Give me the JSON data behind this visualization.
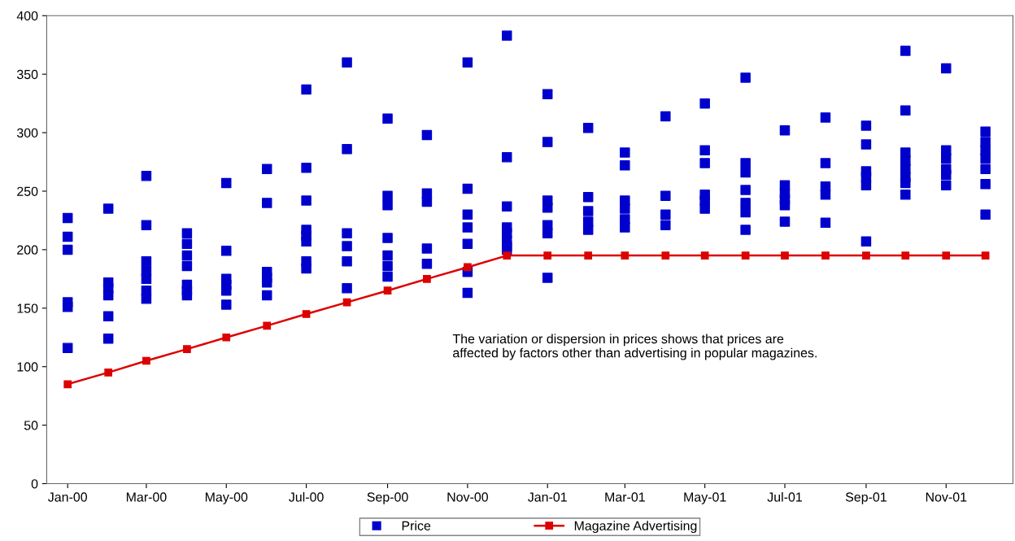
{
  "chart_data": {
    "type": "line",
    "x": [
      "2000-01",
      "2000-02",
      "2000-03",
      "2000-04",
      "2000-05",
      "2000-06",
      "2000-07",
      "2000-08",
      "2000-09",
      "2000-10",
      "2000-11",
      "2000-12",
      "2001-01",
      "2001-02",
      "2001-03",
      "2001-04",
      "2001-05",
      "2001-06",
      "2001-07",
      "2001-08",
      "2001-09",
      "2001-10",
      "2001-11",
      "2001-12"
    ],
    "series": [
      {
        "name": "Price",
        "type": "scatter",
        "color": "#0000cc",
        "marker": "square",
        "x": [
          "2000-01",
          "2000-01",
          "2000-01",
          "2000-01",
          "2000-01",
          "2000-01",
          "2000-02",
          "2000-02",
          "2000-02",
          "2000-02",
          "2000-02",
          "2000-02",
          "2000-03",
          "2000-03",
          "2000-03",
          "2000-03",
          "2000-03",
          "2000-03",
          "2000-03",
          "2000-04",
          "2000-04",
          "2000-04",
          "2000-04",
          "2000-04",
          "2000-04",
          "2000-04",
          "2000-05",
          "2000-05",
          "2000-05",
          "2000-05",
          "2000-05",
          "2000-05",
          "2000-06",
          "2000-06",
          "2000-06",
          "2000-06",
          "2000-06",
          "2000-06",
          "2000-07",
          "2000-07",
          "2000-07",
          "2000-07",
          "2000-07",
          "2000-07",
          "2000-07",
          "2000-07",
          "2000-08",
          "2000-08",
          "2000-08",
          "2000-08",
          "2000-08",
          "2000-08",
          "2000-09",
          "2000-09",
          "2000-09",
          "2000-09",
          "2000-09",
          "2000-09",
          "2000-09",
          "2000-10",
          "2000-10",
          "2000-10",
          "2000-10",
          "2000-10",
          "2000-11",
          "2000-11",
          "2000-11",
          "2000-11",
          "2000-11",
          "2000-11",
          "2000-11",
          "2000-12",
          "2000-12",
          "2000-12",
          "2000-12",
          "2000-12",
          "2000-12",
          "2000-12",
          "2000-12",
          "2001-01",
          "2001-01",
          "2001-01",
          "2001-01",
          "2001-01",
          "2001-01",
          "2001-01",
          "2001-02",
          "2001-02",
          "2001-02",
          "2001-02",
          "2001-02",
          "2001-03",
          "2001-03",
          "2001-03",
          "2001-03",
          "2001-03",
          "2001-03",
          "2001-04",
          "2001-04",
          "2001-04",
          "2001-04",
          "2001-05",
          "2001-05",
          "2001-05",
          "2001-05",
          "2001-05",
          "2001-05",
          "2001-06",
          "2001-06",
          "2001-06",
          "2001-06",
          "2001-06",
          "2001-06",
          "2001-06",
          "2001-07",
          "2001-07",
          "2001-07",
          "2001-07",
          "2001-07",
          "2001-07",
          "2001-08",
          "2001-08",
          "2001-08",
          "2001-08",
          "2001-08",
          "2001-09",
          "2001-09",
          "2001-09",
          "2001-09",
          "2001-09",
          "2001-09",
          "2001-10",
          "2001-10",
          "2001-10",
          "2001-10",
          "2001-10",
          "2001-10",
          "2001-10",
          "2001-10",
          "2001-11",
          "2001-11",
          "2001-11",
          "2001-11",
          "2001-11",
          "2001-11",
          "2001-12",
          "2001-12",
          "2001-12",
          "2001-12",
          "2001-12",
          "2001-12",
          "2001-12"
        ],
        "values": [
          227,
          211,
          200,
          155,
          151,
          116,
          235,
          172,
          167,
          161,
          143,
          124,
          263,
          221,
          190,
          182,
          175,
          165,
          158,
          214,
          205,
          195,
          186,
          170,
          165,
          161,
          257,
          199,
          175,
          170,
          165,
          153,
          269,
          240,
          181,
          176,
          172,
          161,
          337,
          270,
          242,
          217,
          212,
          207,
          190,
          184,
          360,
          286,
          214,
          203,
          190,
          167,
          312,
          246,
          238,
          210,
          195,
          186,
          177,
          298,
          248,
          241,
          201,
          188,
          360,
          252,
          230,
          219,
          205,
          181,
          163,
          383,
          279,
          237,
          219,
          214,
          208,
          203,
          200,
          333,
          292,
          242,
          236,
          221,
          214,
          176,
          304,
          245,
          233,
          224,
          217,
          283,
          272,
          242,
          235,
          226,
          219,
          314,
          246,
          230,
          221,
          325,
          285,
          274,
          247,
          242,
          235,
          347,
          274,
          266,
          251,
          240,
          232,
          217,
          302,
          255,
          248,
          243,
          238,
          224,
          313,
          274,
          254,
          247,
          223,
          306,
          290,
          267,
          262,
          255,
          207,
          370,
          319,
          283,
          276,
          269,
          262,
          257,
          247,
          355,
          285,
          278,
          269,
          264,
          255,
          301,
          292,
          285,
          278,
          269,
          256,
          230
        ]
      },
      {
        "name": "Magazine Advertising",
        "color": "#dd0000",
        "marker": "square",
        "values": [
          85,
          95,
          105,
          115,
          125,
          135,
          145,
          155,
          165,
          175,
          185,
          195,
          195,
          195,
          195,
          195,
          195,
          195,
          195,
          195,
          195,
          195,
          195,
          195
        ]
      }
    ],
    "xlim": [
      "1999-12-16",
      "2001-12-22"
    ],
    "xticks": [
      {
        "value": "2000-01",
        "label": "Jan-00"
      },
      {
        "value": "2000-03",
        "label": "Mar-00"
      },
      {
        "value": "2000-05",
        "label": "May-00"
      },
      {
        "value": "2000-07",
        "label": "Jul-00"
      },
      {
        "value": "2000-09",
        "label": "Sep-00"
      },
      {
        "value": "2000-11",
        "label": "Nov-00"
      },
      {
        "value": "2001-01",
        "label": "Jan-01"
      },
      {
        "value": "2001-03",
        "label": "Mar-01"
      },
      {
        "value": "2001-05",
        "label": "May-01"
      },
      {
        "value": "2001-07",
        "label": "Jul-01"
      },
      {
        "value": "2001-09",
        "label": "Sep-01"
      },
      {
        "value": "2001-11",
        "label": "Nov-01"
      }
    ],
    "ylim": [
      0,
      400
    ],
    "yticks": [
      0,
      50,
      100,
      150,
      200,
      250,
      300,
      350,
      400
    ],
    "annotations": [
      "The variation or dispersion in prices shows that prices are\naffected by factors other than advertising in popular magazines."
    ],
    "legend": "bottom",
    "grid": false,
    "line_style": "solid"
  }
}
